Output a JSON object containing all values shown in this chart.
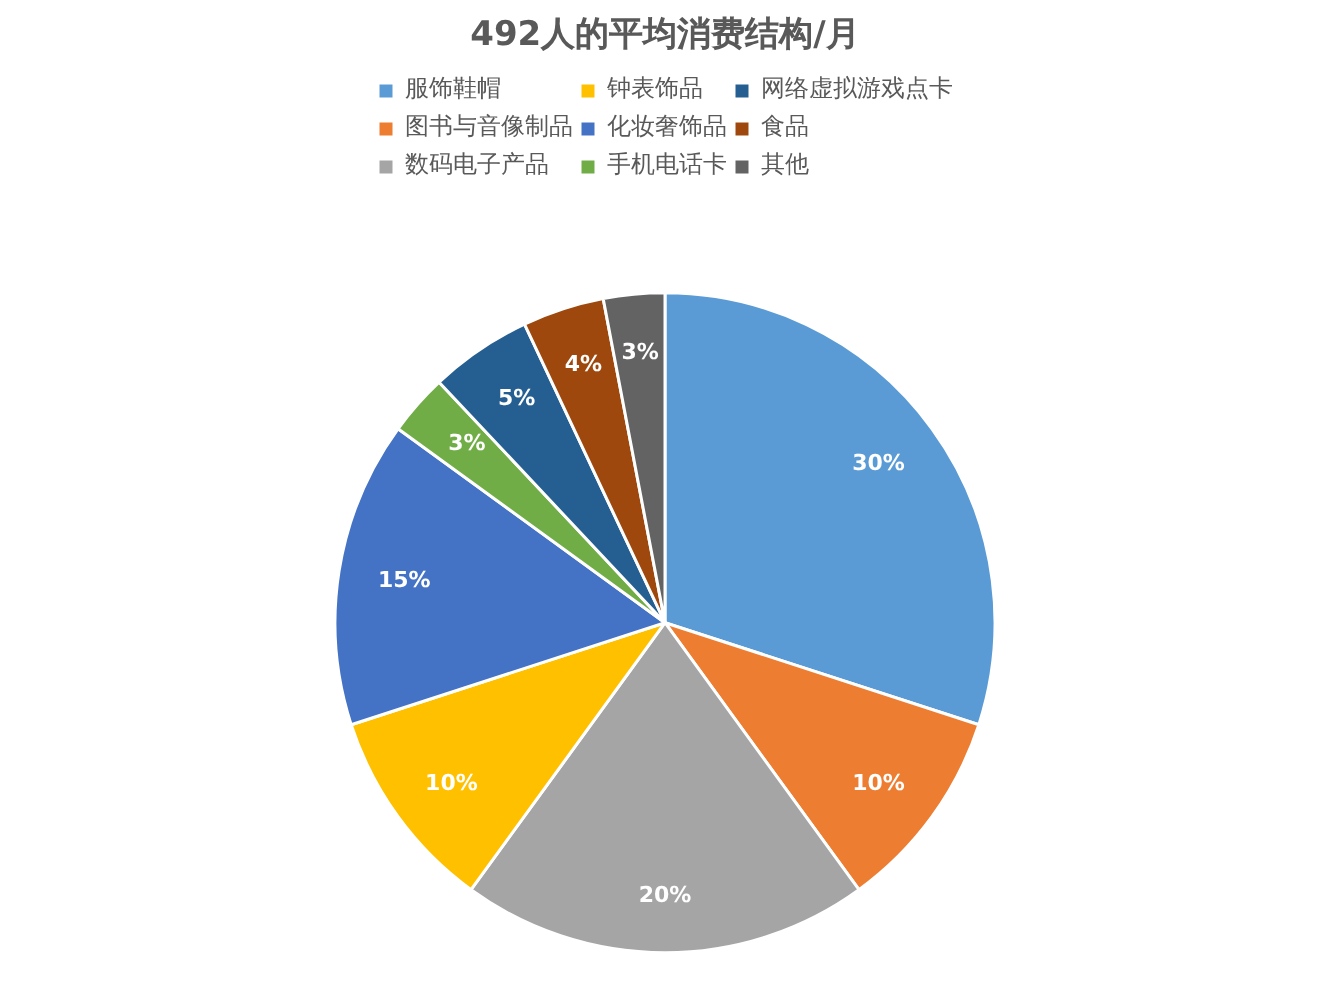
{
  "chart_data": {
    "type": "pie",
    "title": "492人的平均消费结构/月",
    "categories": [
      "服饰鞋帽",
      "图书与音像制品",
      "数码电子产品",
      "钟表饰品",
      "化妆奢饰品",
      "手机电话卡",
      "网络虚拟游戏点卡",
      "食品",
      "其他"
    ],
    "values": [
      30,
      10,
      20,
      10,
      15,
      3,
      5,
      4,
      3
    ],
    "colors": [
      "#5b9bd5",
      "#ed7d31",
      "#a5a5a5",
      "#ffc000",
      "#4472c4",
      "#70ad47",
      "#255e91",
      "#9e480e",
      "#636363"
    ],
    "value_labels": [
      "30%",
      "10%",
      "20%",
      "10%",
      "15%",
      "3%",
      "5%",
      "4%",
      "3%"
    ],
    "legend": "top"
  }
}
